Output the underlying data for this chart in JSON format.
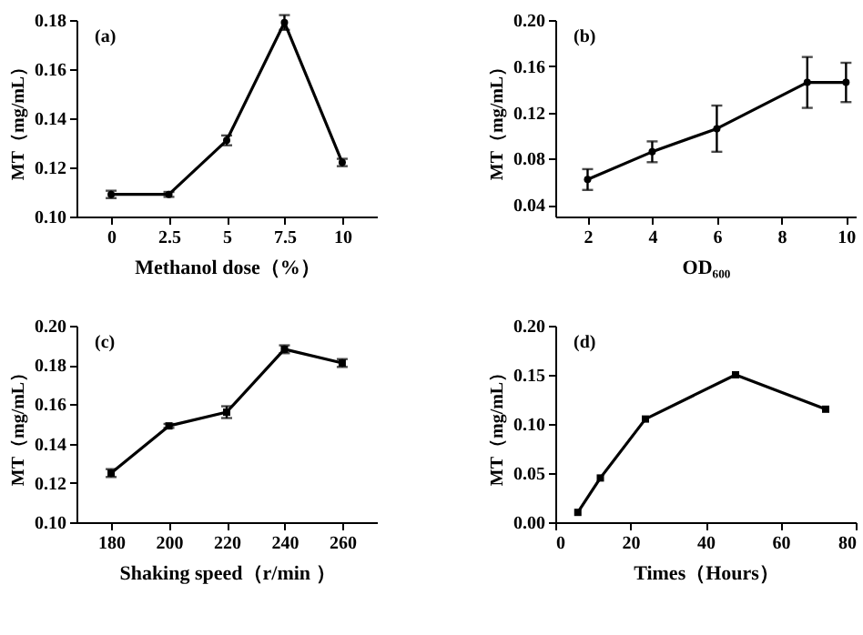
{
  "chart_data": [
    {
      "type": "line",
      "annotations": [
        "(a)"
      ],
      "xlabel": "Methanol dose（%）",
      "ylabel": "MT（mg/mL）",
      "categories": [
        "0",
        "2.5",
        "5",
        "7.5",
        "10"
      ],
      "values": [
        0.109,
        0.109,
        0.131,
        0.179,
        0.122
      ],
      "errors": [
        0.0015,
        0.001,
        0.002,
        0.003,
        0.0015
      ],
      "color": "#000000",
      "marker": "circle",
      "ylim": [
        0.1,
        0.18
      ],
      "yticks": [
        {
          "value": 0.1,
          "label": "0.10"
        },
        {
          "value": 0.12,
          "label": "0.12"
        },
        {
          "value": 0.14,
          "label": "0.14"
        },
        {
          "value": 0.16,
          "label": "0.16"
        },
        {
          "value": 0.18,
          "label": "0.18"
        }
      ]
    },
    {
      "type": "line",
      "annotations": [
        "(b)"
      ],
      "xlabel": "OD₆₀₀",
      "ylabel": "MT（mg/mL）",
      "x": [
        2,
        4,
        6,
        8.8,
        10
      ],
      "values": [
        0.062,
        0.086,
        0.106,
        0.146,
        0.146
      ],
      "errors": [
        0.009,
        0.009,
        0.02,
        0.022,
        0.017
      ],
      "color": "#000000",
      "marker": "circle",
      "xlim": [
        1,
        10.3
      ],
      "xticks": [
        2,
        4,
        6,
        8,
        10
      ],
      "ylim": [
        0.03,
        0.2
      ],
      "yticks": [
        {
          "value": 0.04,
          "label": "0.04"
        },
        {
          "value": 0.08,
          "label": "0.08"
        },
        {
          "value": 0.12,
          "label": "0.12"
        },
        {
          "value": 0.16,
          "label": "0.16"
        },
        {
          "value": 0.2,
          "label": "0.20"
        }
      ]
    },
    {
      "type": "line",
      "annotations": [
        "(c)"
      ],
      "xlabel": "Shaking speed（r/min ）",
      "ylabel": "MT（mg/mL）",
      "categories": [
        "180",
        "200",
        "220",
        "240",
        "260"
      ],
      "values": [
        0.125,
        0.149,
        0.156,
        0.188,
        0.181
      ],
      "errors": [
        0.002,
        0.001,
        0.003,
        0.002,
        0.002
      ],
      "color": "#000000",
      "marker": "square",
      "ylim": [
        0.1,
        0.2
      ],
      "yticks": [
        {
          "value": 0.1,
          "label": "0.10"
        },
        {
          "value": 0.12,
          "label": "0.12"
        },
        {
          "value": 0.14,
          "label": "0.14"
        },
        {
          "value": 0.16,
          "label": "0.16"
        },
        {
          "value": 0.18,
          "label": "0.18"
        },
        {
          "value": 0.2,
          "label": "0.20"
        }
      ]
    },
    {
      "type": "line",
      "annotations": [
        "(d)"
      ],
      "xlabel": "Times（Hours）",
      "ylabel": "MT（mg/mL）",
      "x": [
        6,
        12,
        24,
        48,
        72
      ],
      "values": [
        0.01,
        0.045,
        0.105,
        0.15,
        0.115
      ],
      "color": "#000000",
      "marker": "square",
      "xlim": [
        0,
        80
      ],
      "xticks": [
        0,
        20,
        40,
        60,
        80
      ],
      "ylim": [
        0,
        0.2
      ],
      "yticks": [
        {
          "value": 0,
          "label": "0.00"
        },
        {
          "value": 0.05,
          "label": "0.05"
        },
        {
          "value": 0.1,
          "label": "0.10"
        },
        {
          "value": 0.15,
          "label": "0.15"
        },
        {
          "value": 0.2,
          "label": "0.20"
        }
      ]
    }
  ]
}
